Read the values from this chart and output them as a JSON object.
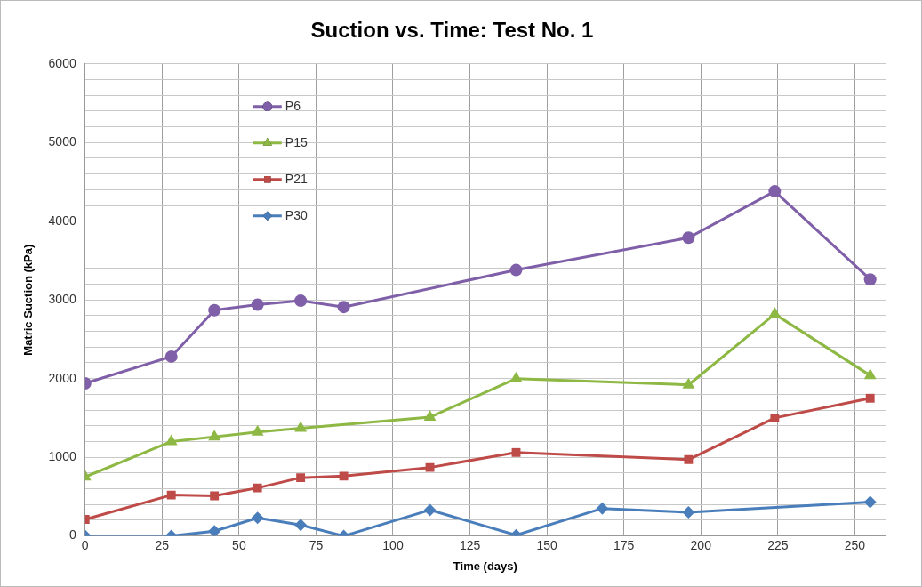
{
  "chart_data": {
    "type": "line",
    "title": "Suction vs. Time: Test No. 1",
    "xlabel": "Time (days)",
    "ylabel": "Matric Suction (kPa)",
    "xlim": [
      0,
      260
    ],
    "xticks": [
      0,
      25,
      50,
      75,
      100,
      125,
      150,
      175,
      200,
      225,
      250
    ],
    "ylim": [
      0,
      6000
    ],
    "yticks": [
      0,
      {
        "value": 200,
        "label": null
      },
      {
        "value": 400,
        "label": null
      },
      {
        "value": 600,
        "label": null
      },
      {
        "value": 800,
        "label": null
      },
      1000,
      {
        "value": 1200,
        "label": null
      },
      {
        "value": 1400,
        "label": null
      },
      {
        "value": 1600,
        "label": null
      },
      {
        "value": 1800,
        "label": null
      },
      2000,
      {
        "value": 2200,
        "label": null
      },
      {
        "value": 2400,
        "label": null
      },
      {
        "value": 2600,
        "label": null
      },
      {
        "value": 2800,
        "label": null
      },
      3000,
      {
        "value": 3200,
        "label": null
      },
      {
        "value": 3400,
        "label": null
      },
      {
        "value": 3600,
        "label": null
      },
      {
        "value": 3800,
        "label": null
      },
      4000,
      {
        "value": 4200,
        "label": null
      },
      {
        "value": 4400,
        "label": null
      },
      {
        "value": 4600,
        "label": null
      },
      {
        "value": 4800,
        "label": null
      },
      5000,
      {
        "value": 5200,
        "label": null
      },
      {
        "value": 5400,
        "label": null
      },
      {
        "value": 5600,
        "label": null
      },
      {
        "value": 5800,
        "label": null
      },
      6000
    ],
    "grid": true,
    "legend": "top left",
    "line_style": "solid",
    "series": [
      {
        "name": "P6",
        "color": "#7f5fa8",
        "marker": "circle",
        "x": [
          0,
          28,
          42,
          56,
          70,
          84,
          140,
          196,
          224,
          255
        ],
        "values": [
          1940,
          2280,
          2870,
          2940,
          2990,
          2910,
          3380,
          3790,
          4380,
          3260
        ]
      },
      {
        "name": "P15",
        "color": "#8db843",
        "marker": "triangle",
        "x": [
          0,
          28,
          42,
          56,
          70,
          112,
          140,
          196,
          224,
          255
        ],
        "values": [
          750,
          1200,
          1260,
          1320,
          1370,
          1510,
          2000,
          1920,
          2820,
          2040
        ]
      },
      {
        "name": "P21",
        "color": "#be4b48",
        "marker": "square",
        "x": [
          0,
          28,
          42,
          56,
          70,
          84,
          112,
          140,
          196,
          224,
          255
        ],
        "values": [
          210,
          520,
          510,
          610,
          740,
          760,
          870,
          1060,
          970,
          1500,
          1750
        ]
      },
      {
        "name": "P30",
        "color": "#4a7ebb",
        "marker": "diamond",
        "x": [
          0,
          28,
          42,
          56,
          70,
          84,
          112,
          140,
          168,
          196,
          255
        ],
        "values": [
          0,
          0,
          60,
          230,
          140,
          0,
          330,
          10,
          350,
          300,
          430
        ]
      }
    ]
  }
}
